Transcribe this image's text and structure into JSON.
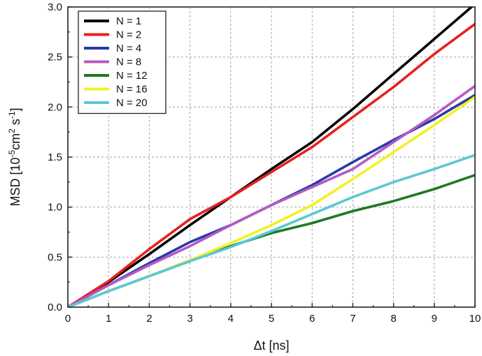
{
  "chart_data": {
    "type": "line",
    "title": "",
    "xlabel": "Δt [ns]",
    "ylabel_parts": {
      "prefix": "MSD [10",
      "exp1": "-5",
      "mid": "cm",
      "exp2": "2",
      "mid2": " s",
      "exp3": "-1",
      "suffix": "]"
    },
    "xlim": [
      0,
      10
    ],
    "ylim": [
      0,
      3.0
    ],
    "x_ticks": [
      "0",
      "1",
      "2",
      "3",
      "4",
      "5",
      "6",
      "7",
      "8",
      "9",
      "10"
    ],
    "y_ticks": [
      "0.0",
      "0.5",
      "1.0",
      "1.5",
      "2.0",
      "2.5",
      "3.0"
    ],
    "grid": true,
    "legend_position": "top-left",
    "x": [
      0,
      1,
      2,
      3,
      4,
      5,
      6,
      7,
      8,
      9,
      10
    ],
    "series": [
      {
        "name": "N = 1",
        "color": "#000000",
        "values": [
          0,
          0.25,
          0.53,
          0.82,
          1.1,
          1.38,
          1.65,
          1.98,
          2.33,
          2.68,
          3.03
        ]
      },
      {
        "name": "N = 2",
        "color": "#e82020",
        "values": [
          0,
          0.26,
          0.58,
          0.88,
          1.1,
          1.35,
          1.6,
          1.9,
          2.2,
          2.53,
          2.83
        ]
      },
      {
        "name": "N = 4",
        "color": "#2a3aa8",
        "values": [
          0,
          0.22,
          0.44,
          0.65,
          0.82,
          1.02,
          1.22,
          1.45,
          1.67,
          1.88,
          2.12
        ]
      },
      {
        "name": "N = 8",
        "color": "#b45ac2",
        "values": [
          0,
          0.22,
          0.42,
          0.61,
          0.82,
          1.02,
          1.2,
          1.38,
          1.65,
          1.92,
          2.21
        ]
      },
      {
        "name": "N = 12",
        "color": "#1e7a24",
        "values": [
          0,
          0.16,
          0.31,
          0.46,
          0.61,
          0.74,
          0.84,
          0.96,
          1.06,
          1.18,
          1.32
        ]
      },
      {
        "name": "N = 16",
        "color": "#f4f025",
        "values": [
          0,
          0.16,
          0.31,
          0.47,
          0.64,
          0.82,
          1.02,
          1.28,
          1.55,
          1.82,
          2.1
        ]
      },
      {
        "name": "N = 20",
        "color": "#5cc8d4",
        "values": [
          0,
          0.16,
          0.31,
          0.46,
          0.6,
          0.76,
          0.93,
          1.1,
          1.25,
          1.38,
          1.52
        ]
      }
    ]
  }
}
